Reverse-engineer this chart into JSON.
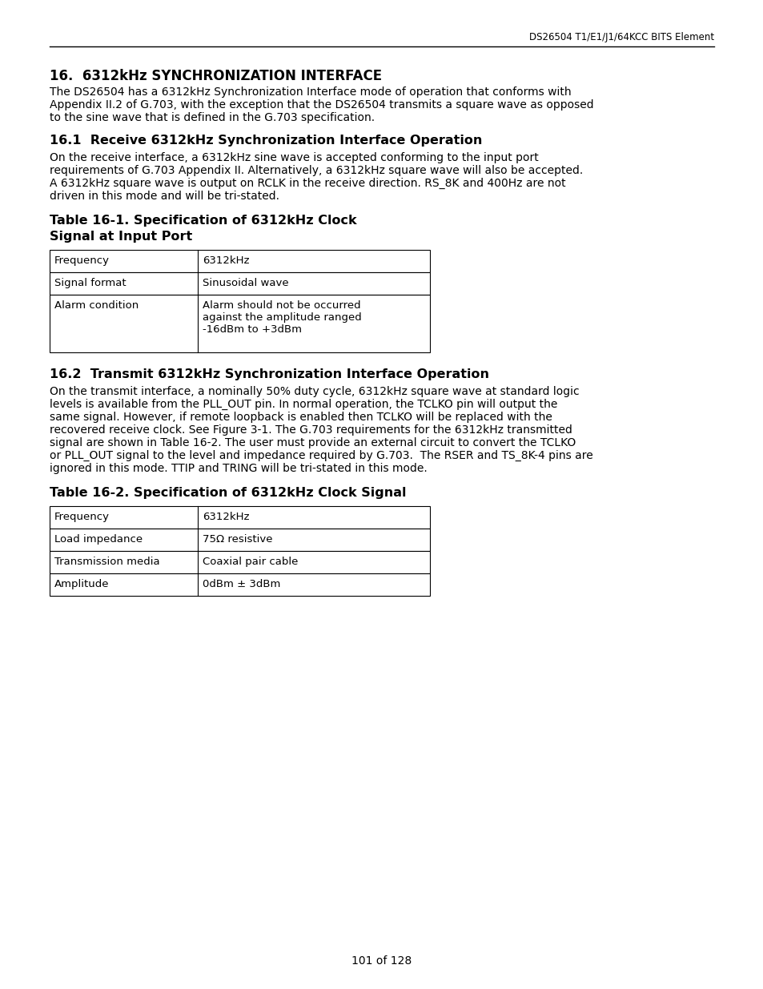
{
  "header_right": "DS26504 T1/E1/J1/64KCC BITS Element",
  "section16_title": "16.  6312kHz SYNCHRONIZATION INTERFACE",
  "section16_body": "The DS26504 has a 6312kHz Synchronization Interface mode of operation that conforms with Appendix II.2 of G.703, with the exception that the DS26504 transmits a square wave as opposed to the sine wave that is defined in the G.703 specification.",
  "section161_title": "16.1  Receive 6312kHz Synchronization Interface Operation",
  "section161_body": "On the receive interface, a 6312kHz sine wave is accepted conforming to the input port requirements of G.703 Appendix II. Alternatively, a 6312kHz square wave will also be accepted. A 6312kHz square wave is output on RCLK in the receive direction. RS_8K and 400Hz are not driven in this mode and will be tri-stated.",
  "table1_title": "Table 16-1. Specification of 6312kHz Clock\nSignal at Input Port",
  "table1_rows": [
    [
      "Frequency",
      "6312kHz"
    ],
    [
      "Signal format",
      "Sinusoidal wave"
    ],
    [
      "Alarm condition",
      "Alarm should not be occurred\nagainst the amplitude ranged\n-16dBm to +3dBm"
    ]
  ],
  "section162_title": "16.2  Transmit 6312kHz Synchronization Interface Operation",
  "section162_body": "On the transmit interface, a nominally 50% duty cycle, 6312kHz square wave at standard logic levels is available from the PLL_OUT pin. In normal operation, the TCLKO pin will output the same signal. However, if remote loopback is enabled then TCLKO will be replaced with the recovered receive clock. See Figure 3-1. The G.703 requirements for the 6312kHz transmitted signal are shown in Table 16-2. The user must provide an external circuit to convert the TCLKO or PLL_OUT signal to the level and impedance required by G.703.  The RSER and TS_8K-4 pins are ignored in this mode. TTIP and TRING will be tri-stated in this mode.",
  "table2_title": "Table 16-2. Specification of 6312kHz Clock Signal",
  "table2_rows": [
    [
      "Frequency",
      "6312kHz"
    ],
    [
      "Load impedance",
      "75Ω resistive"
    ],
    [
      "Transmission media",
      "Coaxial pair cable"
    ],
    [
      "Amplitude",
      "0dBm ± 3dBm"
    ]
  ],
  "footer": "101 of 128",
  "bg_color": "#ffffff",
  "text_color": "#000000",
  "line_color": "#000000",
  "header_line_color": "#000000",
  "table_border_color": "#000000",
  "section16_title_bold": true,
  "section161_title_bold": true,
  "section162_title_bold": true,
  "table1_title_bold": true,
  "table2_title_bold": true
}
